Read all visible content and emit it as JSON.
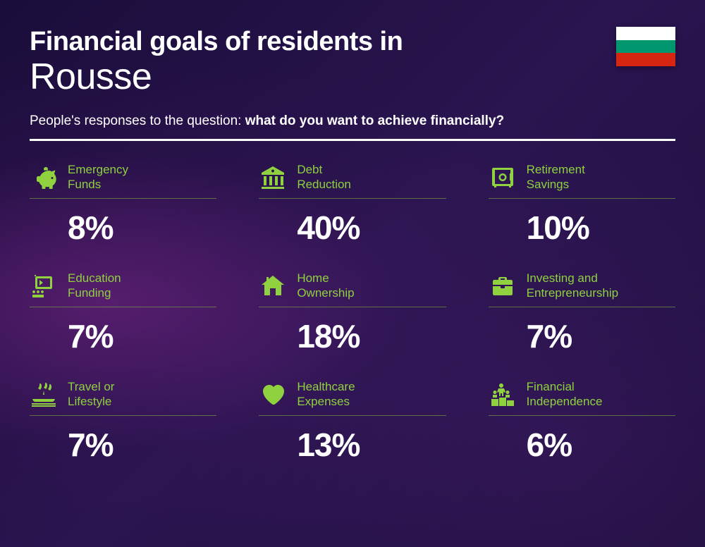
{
  "header": {
    "title_prefix": "Financial goals of residents in",
    "city": "Rousse",
    "subtitle_lead": "People's responses to the question: ",
    "subtitle_bold": "what do you want to achieve financially?"
  },
  "flag": {
    "stripes": [
      "#ffffff",
      "#00966e",
      "#d62612"
    ]
  },
  "accent_color": "#8fd13f",
  "items": [
    {
      "icon": "piggy",
      "label_l1": "Emergency",
      "label_l2": "Funds",
      "percent": "8%"
    },
    {
      "icon": "bank",
      "label_l1": "Debt",
      "label_l2": "Reduction",
      "percent": "40%"
    },
    {
      "icon": "safe",
      "label_l1": "Retirement",
      "label_l2": "Savings",
      "percent": "10%"
    },
    {
      "icon": "education",
      "label_l1": "Education",
      "label_l2": "Funding",
      "percent": "7%"
    },
    {
      "icon": "home",
      "label_l1": "Home",
      "label_l2": "Ownership",
      "percent": "18%"
    },
    {
      "icon": "briefcase",
      "label_l1": "Investing and",
      "label_l2": "Entrepreneurship",
      "percent": "7%"
    },
    {
      "icon": "travel",
      "label_l1": "Travel or",
      "label_l2": "Lifestyle",
      "percent": "7%"
    },
    {
      "icon": "health",
      "label_l1": "Healthcare",
      "label_l2": "Expenses",
      "percent": "13%"
    },
    {
      "icon": "podium",
      "label_l1": "Financial",
      "label_l2": "Independence",
      "percent": "6%"
    }
  ]
}
